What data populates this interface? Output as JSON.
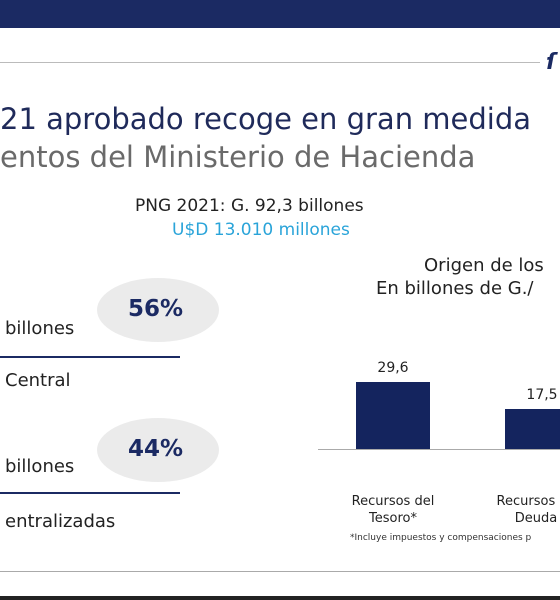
{
  "title_lines": [
    "21 aprobado recoge en gran medida",
    "entos del Ministerio de Hacienda"
  ],
  "budget": {
    "total": "PNG 2021: G. 92,3 billones",
    "usd": "U$D 13.010 millones"
  },
  "items": [
    {
      "percent": "56%",
      "amount": "billones",
      "label": "Central"
    },
    {
      "percent": "44%",
      "amount": "billones",
      "label": "entralizadas"
    }
  ],
  "chart_data": {
    "type": "bar",
    "title": "Origen de los",
    "subtitle": "En billones de G./",
    "categories": [
      "Recursos del Tesoro*",
      "Recursos de y Deuda P"
    ],
    "values": [
      29.6,
      17.5
    ],
    "value_labels": [
      "29,6",
      "17,5"
    ],
    "color": "#14245e",
    "note": "*Incluye impuestos y compensaciones p"
  }
}
